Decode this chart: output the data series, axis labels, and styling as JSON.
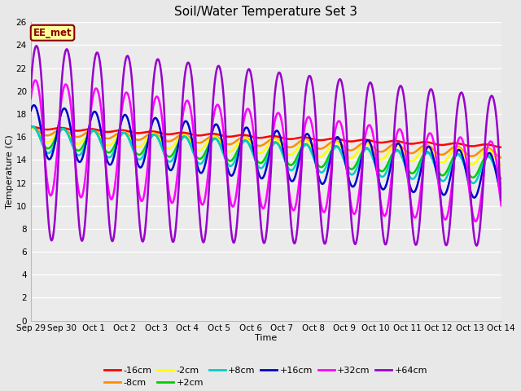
{
  "title": "Soil/Water Temperature Set 3",
  "xlabel": "Time",
  "ylabel": "Temperature (C)",
  "ylim": [
    0,
    26
  ],
  "yticks": [
    0,
    2,
    4,
    6,
    8,
    10,
    12,
    14,
    16,
    18,
    20,
    22,
    24,
    26
  ],
  "xtick_labels": [
    "Sep 29",
    "Sep 30",
    "Oct 1",
    "Oct 2",
    "Oct 3",
    "Oct 4",
    "Oct 5",
    "Oct 6",
    "Oct 7",
    "Oct 8",
    "Oct 9",
    "Oct 10",
    "Oct 11",
    "Oct 12",
    "Oct 13",
    "Oct 14"
  ],
  "annotation_text": "EE_met",
  "annotation_color": "#8B0000",
  "annotation_bg": "#FFFF99",
  "series_order": [
    "-16cm",
    "-8cm",
    "-2cm",
    "+2cm",
    "+8cm",
    "+16cm",
    "+32cm",
    "+64cm"
  ],
  "series_colors": {
    "-16cm": "#FF0000",
    "-8cm": "#FF8C00",
    "-2cm": "#FFFF00",
    "+2cm": "#00CC00",
    "+8cm": "#00CCCC",
    "+16cm": "#0000CC",
    "+32cm": "#FF00FF",
    "+64cm": "#9900CC"
  },
  "series_lw": {
    "-16cm": 1.8,
    "-8cm": 1.8,
    "-2cm": 1.8,
    "+2cm": 1.8,
    "+8cm": 1.8,
    "+16cm": 1.8,
    "+32cm": 1.8,
    "+64cm": 1.8
  },
  "bg_color": "#E8E8E8",
  "plot_bg_color": "#EBEBEB",
  "grid_color": "#FFFFFF",
  "num_days": 15.5,
  "points_per_day": 48,
  "title_fontsize": 11,
  "label_fontsize": 8,
  "tick_fontsize": 7.5,
  "legend_fontsize": 8
}
